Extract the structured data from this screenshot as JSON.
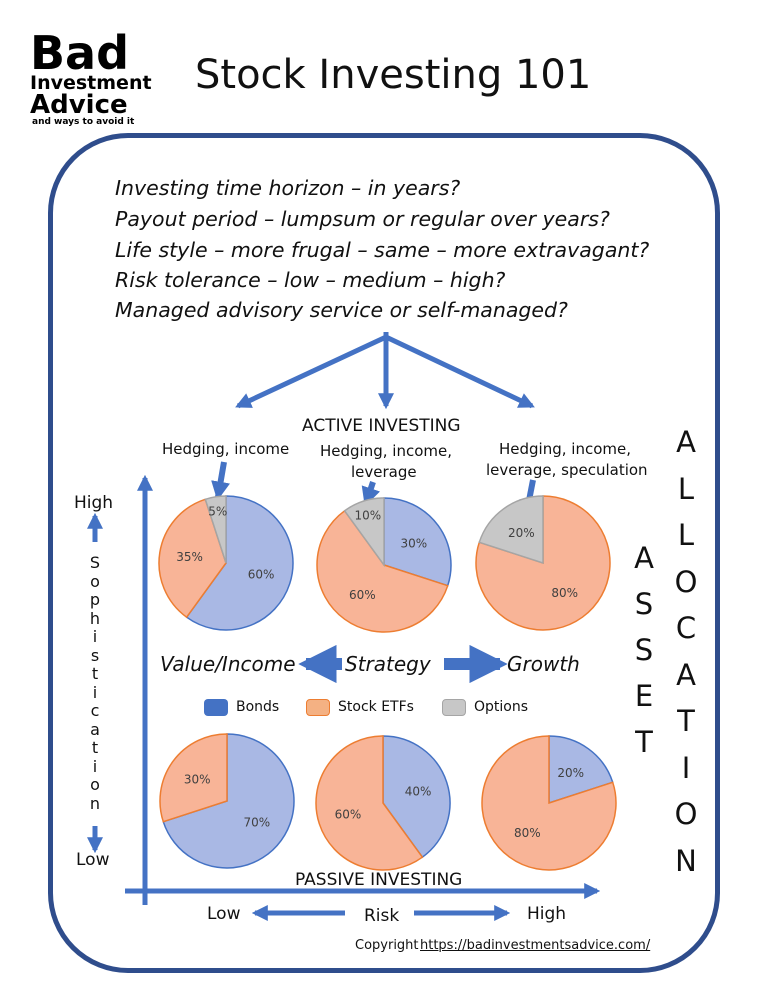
{
  "logo": {
    "line1": "Bad",
    "line2": "Investment",
    "line3": "Advice",
    "tagline": "and ways to avoid it"
  },
  "title": "Stock Investing 101",
  "questions": [
    "Investing time horizon – in years?",
    "Payout period – lumpsum or regular over years?",
    "Life style – more frugal – same – more extravagant?",
    "Risk tolerance – low – medium – high?",
    "Managed advisory service or self-managed?"
  ],
  "active_label": "ACTIVE INVESTING",
  "passive_label": "PASSIVE INVESTING",
  "pie_notes": {
    "left": "Hedging, income",
    "middle_l1": "Hedging, income,",
    "middle_l2": "leverage",
    "right_l1": "Hedging, income,",
    "right_l2": "leverage, speculation"
  },
  "y_axis": {
    "high": "High",
    "low": "Low",
    "title_letters": [
      "S",
      "o",
      "p",
      "h",
      "i",
      "s",
      "t",
      "i",
      "c",
      "a",
      "t",
      "i",
      "o",
      "n"
    ]
  },
  "x_axis": {
    "low": "Low",
    "title": "Risk",
    "high": "High"
  },
  "strategy": {
    "left": "Value/Income",
    "center": "Strategy",
    "right": "Growth"
  },
  "asset_letters": [
    "A",
    "S",
    "S",
    "E",
    "T"
  ],
  "allocation_letters": [
    "A",
    "L",
    "L",
    "O",
    "C",
    "A",
    "T",
    "I",
    "O",
    "N"
  ],
  "legend": [
    {
      "name": "Bonds",
      "color": "#4472C4"
    },
    {
      "name": "Stock ETFs",
      "color": "#ED7D31"
    },
    {
      "name": "Options",
      "color": "#A5A5A5"
    }
  ],
  "colors": {
    "frame": "#2F4D8C",
    "arrow": "#4472C4",
    "bonds_fill": "#A9B8E4",
    "bonds_stroke": "#4472C4",
    "stocks_fill": "#F8B497",
    "stocks_stroke": "#ED7D31",
    "options_fill": "#C7C7C7"
  },
  "chart_data": {
    "type": "pie",
    "pies": [
      {
        "group": "active",
        "slices": [
          {
            "series": "Bonds",
            "value": 60,
            "label": "60%"
          },
          {
            "series": "Stock ETFs",
            "value": 35,
            "label": "35%"
          },
          {
            "series": "Options",
            "value": 5,
            "label": "5%"
          }
        ]
      },
      {
        "group": "active",
        "slices": [
          {
            "series": "Bonds",
            "value": 30,
            "label": "30%"
          },
          {
            "series": "Stock ETFs",
            "value": 60,
            "label": "60%"
          },
          {
            "series": "Options",
            "value": 10,
            "label": "10%"
          }
        ]
      },
      {
        "group": "active",
        "slices": [
          {
            "series": "Stock ETFs",
            "value": 80,
            "label": "80%"
          },
          {
            "series": "Options",
            "value": 20,
            "label": "20%"
          }
        ]
      },
      {
        "group": "passive",
        "slices": [
          {
            "series": "Bonds",
            "value": 70,
            "label": "70%"
          },
          {
            "series": "Stock ETFs",
            "value": 30,
            "label": "30%"
          }
        ]
      },
      {
        "group": "passive",
        "slices": [
          {
            "series": "Bonds",
            "value": 40,
            "label": "40%"
          },
          {
            "series": "Stock ETFs",
            "value": 60,
            "label": "60%"
          }
        ]
      },
      {
        "group": "passive",
        "slices": [
          {
            "series": "Bonds",
            "value": 20,
            "label": "20%"
          },
          {
            "series": "Stock ETFs",
            "value": 80,
            "label": "80%"
          }
        ]
      }
    ]
  },
  "copyright": {
    "prefix": "Copyright",
    "link": "https://badinvestmentsadvice.com/"
  }
}
